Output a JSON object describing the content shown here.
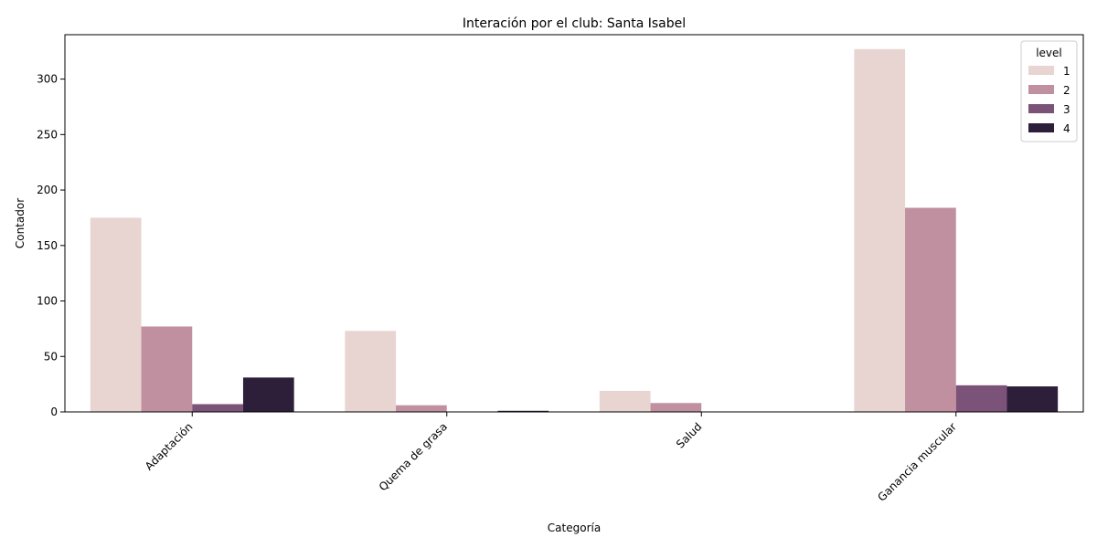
{
  "chart_data": {
    "type": "bar",
    "title": "Interación por el club: Santa Isabel",
    "xlabel": "Categoría",
    "ylabel": "Contador",
    "categories": [
      "Adaptación",
      "Quema de grasa",
      "Salud",
      "Ganancia muscular"
    ],
    "ylim": [
      0,
      340
    ],
    "yticks": [
      0,
      50,
      100,
      150,
      200,
      250,
      300
    ],
    "grid": false,
    "legend": {
      "title": "level",
      "placement": "top-right"
    },
    "series": [
      {
        "name": "1",
        "color": "#e8d4d1",
        "values": [
          175,
          73,
          19,
          327
        ]
      },
      {
        "name": "2",
        "color": "#c08fa0",
        "values": [
          77,
          6,
          8,
          184
        ]
      },
      {
        "name": "3",
        "color": "#7c5378",
        "values": [
          7,
          0,
          0,
          24
        ]
      },
      {
        "name": "4",
        "color": "#2d1e3a",
        "values": [
          31,
          1,
          0,
          23
        ]
      }
    ]
  }
}
